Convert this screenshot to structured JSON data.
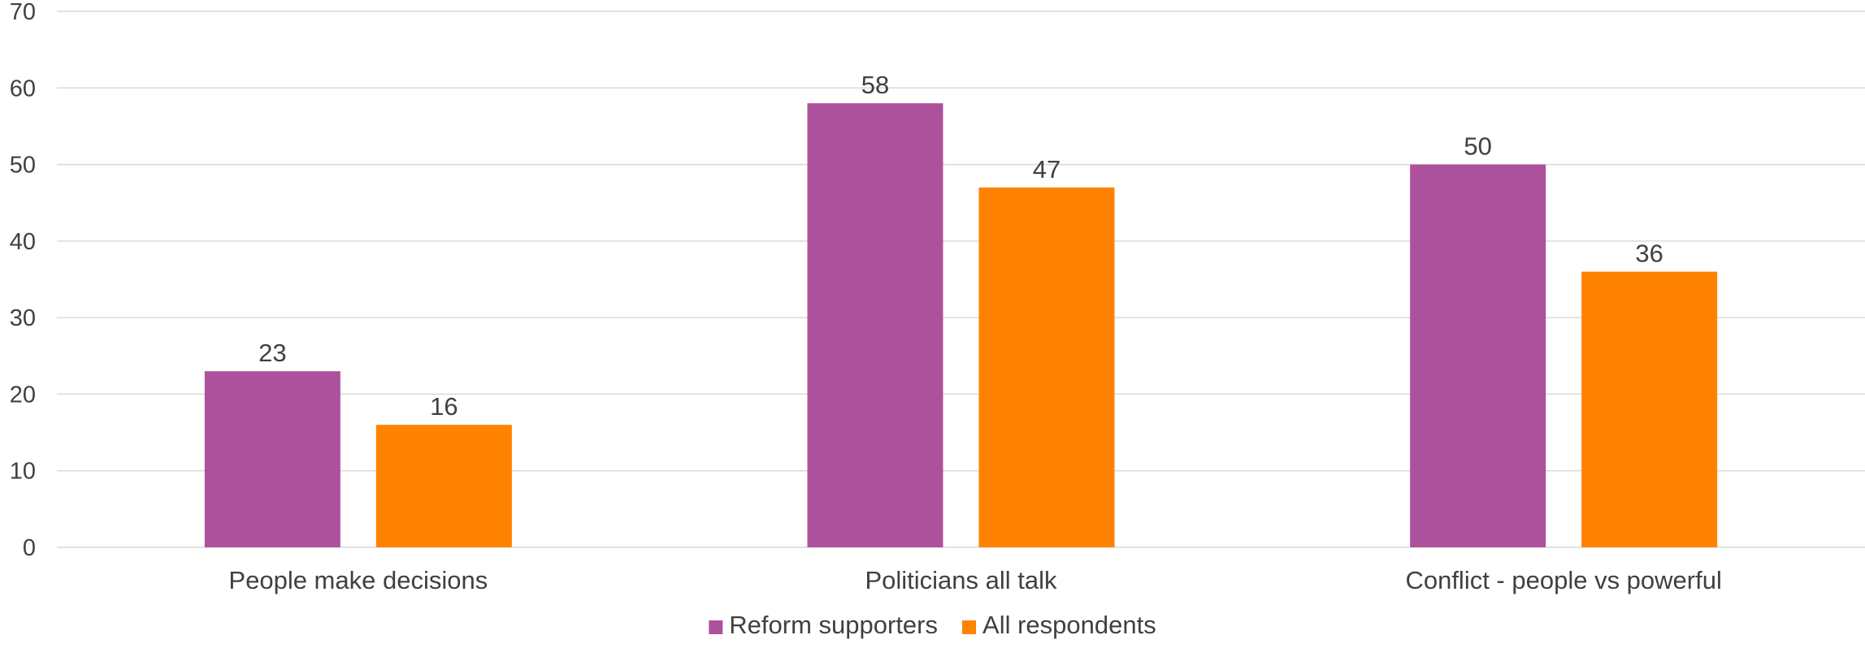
{
  "chart_data": {
    "type": "bar",
    "title": "",
    "xlabel": "",
    "ylabel": "",
    "categories": [
      "People make decisions",
      "Politicians all talk",
      "Conflict - people vs powerful"
    ],
    "series": [
      {
        "name": "Reform supporters",
        "color": "#ae519d",
        "values": [
          23,
          58,
          50
        ]
      },
      {
        "name": "All respondents",
        "color": "#ff8200",
        "values": [
          16,
          47,
          36
        ]
      }
    ],
    "ylim": [
      0,
      70
    ],
    "yticks": [
      0,
      10,
      20,
      30,
      40,
      50,
      60,
      70
    ],
    "grid": true,
    "data_labels": true,
    "legend_position": "bottom"
  }
}
